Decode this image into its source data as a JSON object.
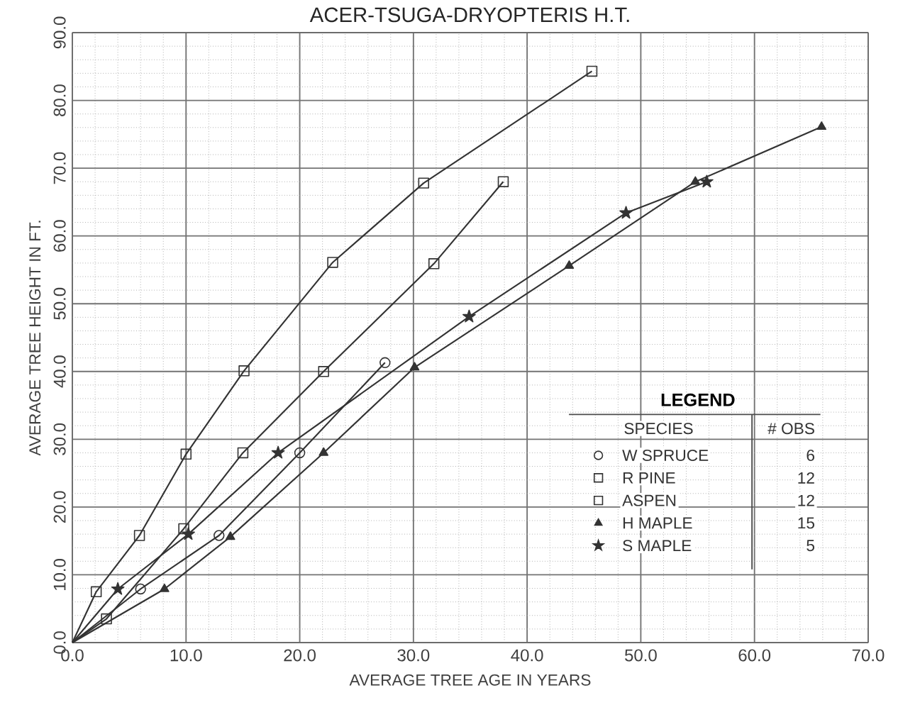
{
  "chart_data": {
    "type": "line",
    "title": "ACER-TSUGA-DRYOPTERIS H.T.",
    "xlabel": "AVERAGE TREE AGE IN YEARS",
    "ylabel": "AVERAGE TREE HEIGHT IN FT.",
    "legend_title": "LEGEND",
    "annotations": [
      "SPECIES",
      "# OBS",
      "6",
      "12",
      "12",
      "15",
      "5"
    ],
    "xlim": [
      0,
      70
    ],
    "ylim": [
      0,
      90
    ],
    "xticks": [
      {
        "value": 0,
        "label": "0.0"
      },
      {
        "value": 10,
        "label": "10.0"
      },
      {
        "value": 20,
        "label": "20.0"
      },
      {
        "value": 30,
        "label": "30.0"
      },
      {
        "value": 40,
        "label": "40.0"
      },
      {
        "value": 50,
        "label": "50.0"
      },
      {
        "value": 60,
        "label": "60.0"
      },
      {
        "value": 70,
        "label": "70.0"
      }
    ],
    "yticks": [
      {
        "value": 0,
        "label": "0.0"
      },
      {
        "value": 10,
        "label": "10.0"
      },
      {
        "value": 20,
        "label": "20.0"
      },
      {
        "value": 30,
        "label": "30.0"
      },
      {
        "value": 40,
        "label": "40.0"
      },
      {
        "value": 50,
        "label": "50.0"
      },
      {
        "value": 60,
        "label": "60.0"
      },
      {
        "value": 70,
        "label": "70.0"
      },
      {
        "value": 80,
        "label": "80.0"
      },
      {
        "value": 90,
        "label": "90.0"
      }
    ],
    "grid": true,
    "legend": "bottom right",
    "line_style": "solid",
    "series": [
      {
        "name": "W SPRUCE",
        "color": "#333333",
        "marker": "circle",
        "x": [
          0,
          6.0,
          12.9,
          20.0,
          27.5
        ],
        "values": [
          0,
          7.9,
          15.8,
          28.0,
          41.3
        ]
      },
      {
        "name": "R PINE",
        "color": "#333333",
        "marker": "square",
        "x": [
          0,
          3.0,
          9.8,
          15.0,
          22.1,
          31.8,
          37.9
        ],
        "values": [
          0,
          3.5,
          16.8,
          28.0,
          40.0,
          55.9,
          68.0
        ]
      },
      {
        "name": "ASPEN",
        "color": "#333333",
        "marker": "square",
        "x": [
          0,
          2.1,
          5.9,
          10.0,
          15.1,
          22.9,
          30.9,
          45.7
        ],
        "values": [
          0,
          7.5,
          15.8,
          27.8,
          40.1,
          56.1,
          67.8,
          84.3
        ]
      },
      {
        "name": "H MAPLE",
        "color": "#333333",
        "marker": "triangle",
        "x": [
          0,
          8.1,
          13.9,
          22.1,
          30.1,
          43.7,
          54.8,
          65.9
        ],
        "values": [
          0,
          7.9,
          15.6,
          28.0,
          40.6,
          55.6,
          68.0,
          76.1
        ]
      },
      {
        "name": "S MAPLE",
        "color": "#333333",
        "marker": "star",
        "x": [
          0,
          4.0,
          10.2,
          18.1,
          34.9,
          48.7,
          55.8
        ],
        "values": [
          0,
          7.9,
          16.0,
          28.0,
          48.1,
          63.4,
          68.0
        ]
      }
    ]
  }
}
